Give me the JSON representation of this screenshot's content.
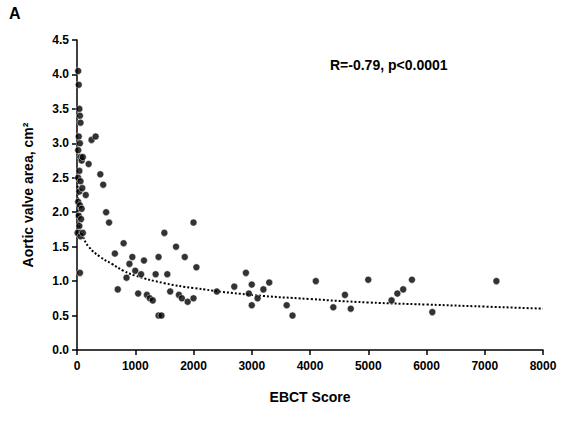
{
  "chart_data": {
    "type": "scatter",
    "title": "A",
    "annotations": [
      "R=-0.79, p<0.0001"
    ],
    "x_label": "EBCT Score",
    "y_label": "Aortic valve area, cm²",
    "xlim": [
      0,
      8000
    ],
    "xticks": [
      0,
      1000,
      2000,
      3000,
      4000,
      5000,
      6000,
      7000,
      8000
    ],
    "ylim": [
      0,
      4.5
    ],
    "yticks": [
      {
        "value": 0,
        "label": "0.0"
      },
      {
        "value": 0.5,
        "label": "0.5"
      },
      {
        "value": 1,
        "label": "1.0"
      },
      {
        "value": 1.5,
        "label": "1.5"
      },
      {
        "value": 2,
        "label": "2.0"
      },
      {
        "value": 2.5,
        "label": "2.5"
      },
      {
        "value": 3,
        "label": "3.0"
      },
      {
        "value": 3.5,
        "label": "3.5"
      },
      {
        "value": 4,
        "label": "4.0"
      },
      {
        "value": 4.5,
        "label": "4.5"
      }
    ],
    "grid": false,
    "series": [
      {
        "type": "scatter",
        "color": "#000000",
        "marker": "circle",
        "x": [
          20,
          30,
          40,
          50,
          60,
          30,
          50,
          20,
          60,
          80,
          40,
          100,
          20,
          60,
          40,
          90,
          20,
          50,
          80,
          30,
          70,
          40,
          10,
          60,
          100,
          50,
          150,
          200,
          250,
          320,
          400,
          450,
          500,
          550,
          650,
          700,
          800,
          850,
          900,
          950,
          1000,
          1050,
          1100,
          1150,
          1200,
          1250,
          1300,
          1350,
          1400,
          1450,
          1400,
          1500,
          1550,
          1600,
          1700,
          1750,
          1800,
          1850,
          1900,
          2000,
          2000,
          2050,
          2400,
          2700,
          2900,
          2950,
          3000,
          3000,
          3100,
          3200,
          3300,
          3600,
          3700,
          4100,
          4400,
          4600,
          4700,
          5000,
          5400,
          5500,
          5600,
          5750,
          6100,
          7200
        ],
        "values": [
          4.05,
          3.85,
          3.5,
          3.4,
          3.3,
          3.1,
          3.0,
          2.9,
          2.8,
          2.75,
          2.6,
          2.8,
          2.5,
          2.45,
          2.3,
          2.35,
          2.15,
          2.1,
          2.05,
          1.95,
          1.9,
          1.8,
          1.7,
          1.65,
          1.7,
          1.12,
          2.25,
          2.7,
          3.05,
          3.1,
          2.55,
          2.4,
          2.0,
          1.85,
          1.4,
          0.88,
          1.55,
          1.05,
          1.25,
          1.35,
          1.15,
          0.82,
          1.1,
          1.3,
          0.8,
          0.75,
          0.72,
          1.1,
          0.5,
          0.5,
          1.35,
          1.7,
          1.1,
          0.85,
          1.5,
          0.8,
          0.75,
          1.35,
          0.7,
          1.85,
          0.75,
          1.2,
          0.85,
          0.92,
          1.12,
          0.82,
          0.65,
          0.95,
          0.75,
          0.88,
          0.98,
          0.65,
          0.5,
          1.0,
          0.62,
          0.8,
          0.6,
          1.02,
          0.72,
          0.82,
          0.88,
          1.02,
          0.55,
          1.0
        ]
      },
      {
        "type": "line",
        "color": "#000000",
        "line_style": "dotted",
        "x": [
          10,
          25,
          50,
          100,
          200,
          400,
          600,
          800,
          1000,
          1500,
          2000,
          3000,
          4000,
          5000,
          6000,
          7000,
          8000
        ],
        "values": [
          2.5,
          2.0,
          1.75,
          1.65,
          1.5,
          1.35,
          1.25,
          1.15,
          1.08,
          0.97,
          0.9,
          0.8,
          0.74,
          0.69,
          0.66,
          0.63,
          0.6
        ]
      }
    ]
  }
}
